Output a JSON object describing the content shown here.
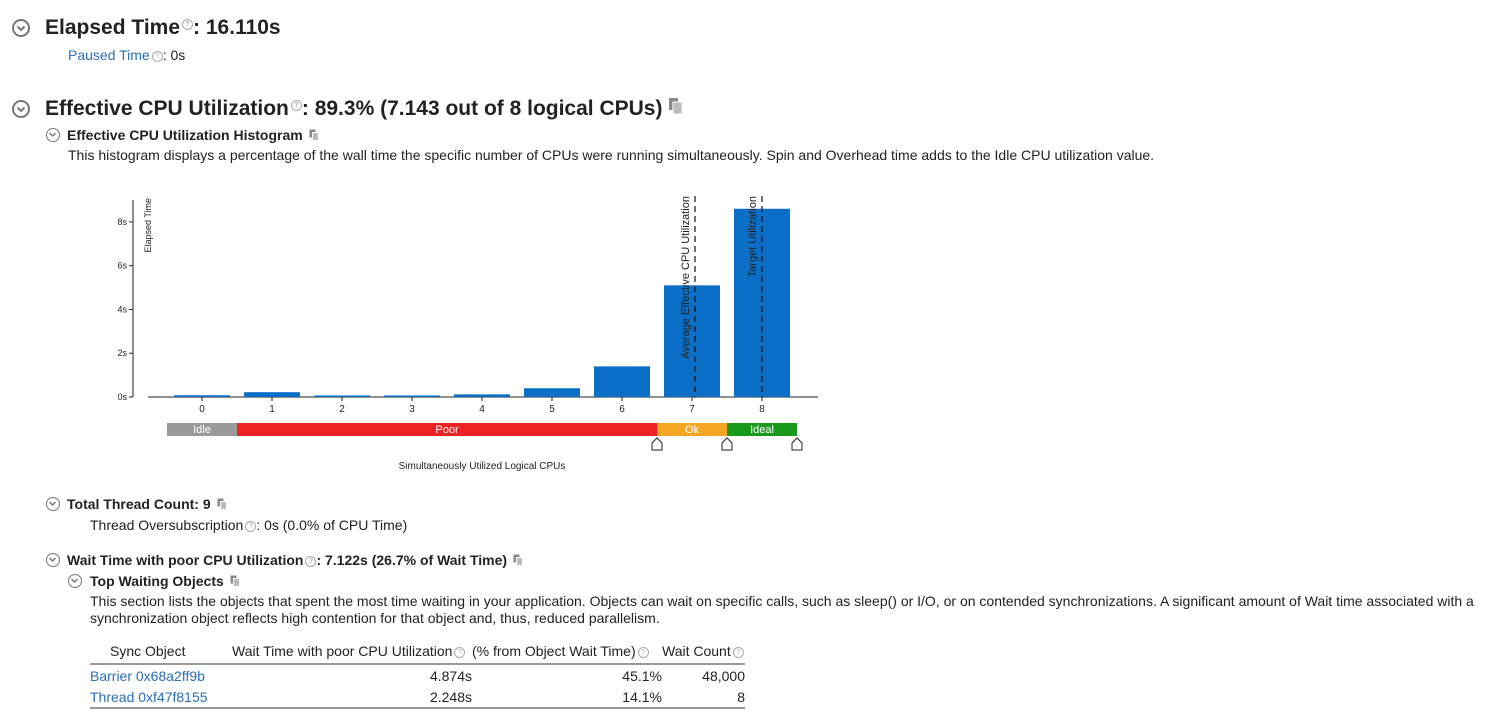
{
  "elapsed": {
    "title": "Elapsed Time",
    "value": ": 16.110s",
    "paused_label": "Paused Time",
    "paused_value": ": 0s"
  },
  "cpu": {
    "title": "Effective CPU Utilization",
    "value": ": 89.3% (7.143 out of 8 logical CPUs)",
    "histogram_title": "Effective CPU Utilization Histogram",
    "histogram_desc": "This histogram displays a percentage of the wall time the specific number of CPUs were running simultaneously. Spin and Overhead time adds to the Idle CPU utilization value."
  },
  "chart_data": {
    "type": "bar",
    "categories": [
      "0",
      "1",
      "2",
      "3",
      "4",
      "5",
      "6",
      "7",
      "8"
    ],
    "values": [
      0.08,
      0.22,
      0.07,
      0.07,
      0.12,
      0.4,
      1.4,
      5.1,
      8.6
    ],
    "ylabel": "Elapsed Time",
    "xlabel": "Simultaneously Utilized Logical CPUs",
    "yticks": [
      "0s",
      "2s",
      "4s",
      "6s",
      "8s"
    ],
    "ylim": [
      0,
      9
    ],
    "bar_color": "#0b6fc7",
    "markers": [
      {
        "label": "Average Effective CPU Utilization",
        "x": 7.143
      },
      {
        "label": "Target Utilization",
        "x": 8
      }
    ],
    "ranges": [
      {
        "label": "Idle",
        "from": 0,
        "to": 1,
        "color": "#9a9a9a"
      },
      {
        "label": "Poor",
        "from": 1,
        "to": 7,
        "color": "#ee2222"
      },
      {
        "label": "Ok",
        "from": 7,
        "to": 8,
        "color": "#f5a623"
      },
      {
        "label": "Ideal",
        "from": 8,
        "to": 9,
        "color": "#1a9a1a"
      }
    ]
  },
  "threads": {
    "title": "Total Thread Count: 9",
    "oversub_label": "Thread Oversubscription",
    "oversub_value": ": 0s (0.0% of CPU Time)"
  },
  "wait": {
    "title": "Wait Time with poor CPU Utilization",
    "value": ": 7.122s (26.7% of Wait Time)",
    "top_title": "Top Waiting Objects",
    "desc_line1": "This section lists the objects that spent the most time waiting in your application. Objects can wait on specific calls, such as sleep() or I/O, or on contended synchronizations. A significant amount of Wait time associated with a",
    "desc_line2": "synchronization object reflects high contention for that object and, thus, reduced parallelism.",
    "columns": [
      "Sync Object",
      "Wait Time with poor CPU Utilization",
      "(% from Object Wait Time)",
      "Wait Count"
    ],
    "rows": [
      {
        "object": "Barrier 0x68a2ff9b",
        "time": "4.874s",
        "pct": "45.1%",
        "count": "48,000"
      },
      {
        "object": "Thread 0xf47f8155",
        "time": "2.248s",
        "pct": "14.1%",
        "count": "8"
      }
    ]
  }
}
